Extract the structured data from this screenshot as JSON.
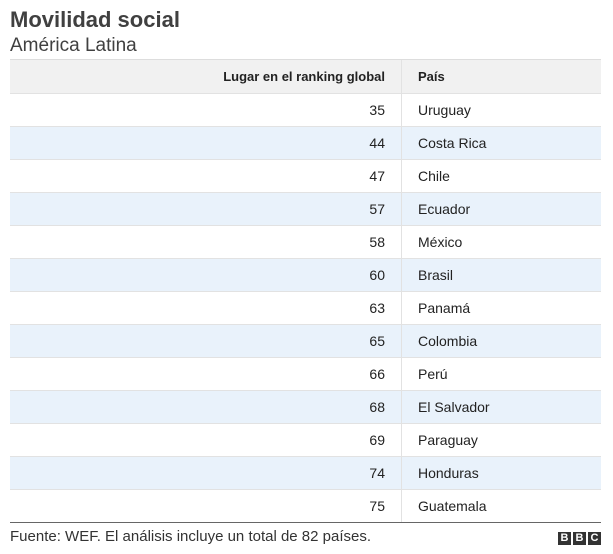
{
  "chart_data": {
    "type": "table",
    "title": "Movilidad social",
    "subtitle": "América Latina",
    "columns": [
      "Lugar en el ranking global",
      "País"
    ],
    "rows": [
      {
        "rank": "35",
        "country": "Uruguay"
      },
      {
        "rank": "44",
        "country": "Costa Rica"
      },
      {
        "rank": "47",
        "country": "Chile"
      },
      {
        "rank": "57",
        "country": "Ecuador"
      },
      {
        "rank": "58",
        "country": "México"
      },
      {
        "rank": "60",
        "country": "Brasil"
      },
      {
        "rank": "63",
        "country": "Panamá"
      },
      {
        "rank": "65",
        "country": "Colombia"
      },
      {
        "rank": "66",
        "country": "Perú"
      },
      {
        "rank": "68",
        "country": "El Salvador"
      },
      {
        "rank": "69",
        "country": "Paraguay"
      },
      {
        "rank": "74",
        "country": "Honduras"
      },
      {
        "rank": "75",
        "country": "Guatemala"
      }
    ],
    "footer": "Fuente: WEF. El análisis incluye un total de 82 países.",
    "logo": [
      "B",
      "B",
      "C"
    ],
    "alt_row_color": "#e9f2fb"
  }
}
